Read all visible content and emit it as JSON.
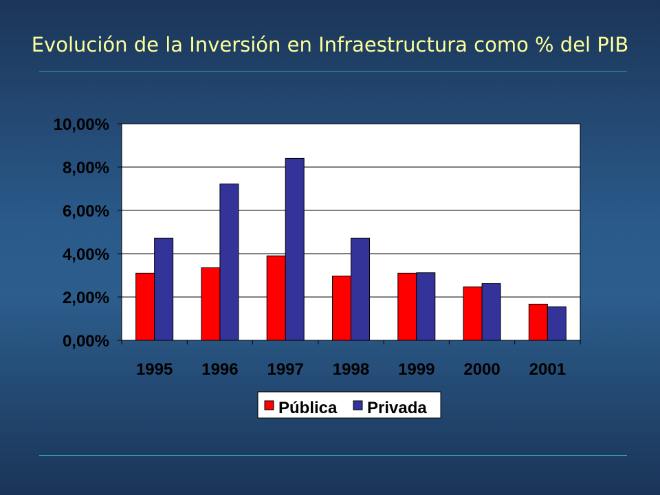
{
  "slide": {
    "title": "Evolución de la Inversión en Infraestructura como % del PIB"
  },
  "colors": {
    "publica": "#ff0000",
    "privada": "#333399",
    "plot_background": "#ffffff",
    "title": "#ffff99"
  },
  "chart_data": {
    "type": "bar",
    "title": "",
    "xlabel": "",
    "ylabel": "",
    "categories": [
      "1995",
      "1996",
      "1997",
      "1998",
      "1999",
      "2000",
      "2001"
    ],
    "series": [
      {
        "name": "Pública",
        "color": "#ff0000",
        "values": [
          3.1,
          3.35,
          3.9,
          2.97,
          3.1,
          2.47,
          1.67
        ]
      },
      {
        "name": "Privada",
        "color": "#333399",
        "values": [
          4.72,
          7.22,
          8.4,
          4.72,
          3.12,
          2.62,
          1.55
        ]
      }
    ],
    "ylim": [
      0,
      10
    ],
    "yticks": [
      0,
      2,
      4,
      6,
      8,
      10
    ],
    "ytick_labels": [
      "0,00%",
      "2,00%",
      "4,00%",
      "6,00%",
      "8,00%",
      "10,00%"
    ],
    "grid": true,
    "legend_position": "bottom"
  }
}
